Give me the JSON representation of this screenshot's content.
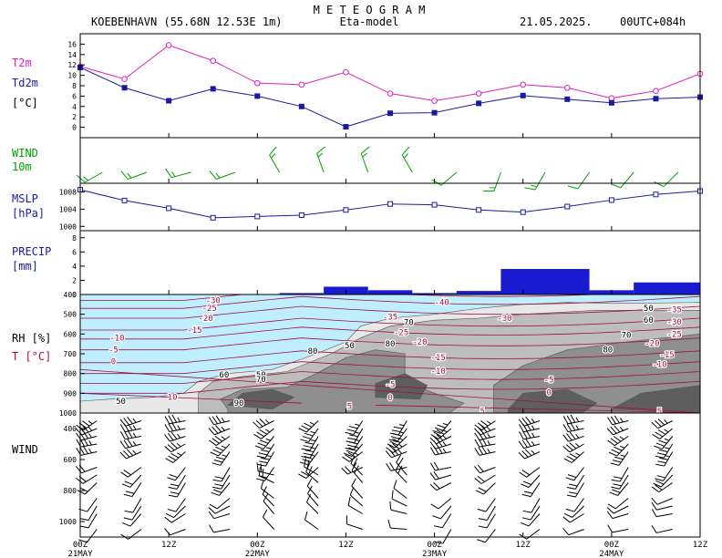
{
  "header": {
    "title": "M E T E O G R A M",
    "station": "KOEBENHAVN (55.68N 12.53E   1m)",
    "model": "Eta-model",
    "date": "21.05.2025.",
    "run": "00UTC+084h"
  },
  "time_axis": {
    "ticks": [
      "00Z",
      "12Z",
      "00Z",
      "12Z",
      "00Z",
      "12Z",
      "00Z",
      "12Z"
    ],
    "days": [
      {
        "label": "21MAY",
        "tick_index": 0
      },
      {
        "label": "22MAY",
        "tick_index": 2
      },
      {
        "label": "23MAY",
        "tick_index": 4
      },
      {
        "label": "24MAY",
        "tick_index": 6
      }
    ]
  },
  "colors": {
    "t2m": "#e020c0",
    "td2m": "#1a1aa0",
    "wind": "#00a000",
    "mslp": "#1a1aa0",
    "precip": "#1a1ad0",
    "sky": "#bfefff",
    "temp_contour": "#a01040",
    "rh_fill": [
      "#e8e8e8",
      "#bdbdbd",
      "#8f8f8f",
      "#5e5e5e"
    ]
  },
  "chart_data": [
    {
      "id": "temperature",
      "type": "line",
      "label_series1": "T2m",
      "label_series2": "Td2m",
      "unit": "[°C]",
      "x_hours": [
        0,
        6,
        12,
        18,
        24,
        30,
        36,
        42,
        48,
        54,
        60,
        66,
        72,
        78,
        84
      ],
      "series": [
        {
          "name": "T2m",
          "values": [
            11.7,
            9.3,
            15.8,
            12.8,
            8.5,
            8.2,
            10.6,
            6.5,
            5.1,
            6.5,
            8.2,
            7.6,
            5.6,
            7.0,
            10.3
          ]
        },
        {
          "name": "Td2m",
          "values": [
            11.5,
            7.6,
            5.1,
            7.4,
            6.0,
            4.0,
            0.1,
            2.7,
            2.8,
            4.6,
            6.1,
            5.4,
            4.7,
            5.5,
            5.8
          ]
        }
      ],
      "ylim": [
        -2,
        18
      ],
      "yticks": [
        0,
        2,
        4,
        6,
        8,
        10,
        12,
        14,
        16
      ]
    },
    {
      "id": "wind10m",
      "type": "barbs",
      "label": "WIND",
      "sublabel": "10m",
      "x_hours": [
        3,
        9,
        15,
        21,
        27,
        33,
        39,
        45,
        51,
        57,
        63,
        69,
        75,
        81
      ],
      "dir_deg": [
        240,
        250,
        255,
        250,
        330,
        340,
        340,
        330,
        230,
        200,
        210,
        215,
        220,
        225
      ],
      "speed_kt": [
        15,
        15,
        15,
        15,
        15,
        15,
        15,
        15,
        10,
        15,
        15,
        10,
        10,
        10
      ]
    },
    {
      "id": "mslp",
      "type": "line",
      "label": "MSLP",
      "unit": "[hPa]",
      "x_hours": [
        0,
        6,
        12,
        18,
        24,
        30,
        36,
        42,
        48,
        54,
        60,
        66,
        72,
        78,
        84
      ],
      "values": [
        1008.5,
        1006.0,
        1004.2,
        1002.0,
        1002.3,
        1002.6,
        1003.8,
        1005.2,
        1005.0,
        1003.8,
        1003.3,
        1004.6,
        1006.1,
        1007.4,
        1008.2
      ],
      "ylim": [
        999,
        1010
      ],
      "yticks": [
        1000,
        1004,
        1008
      ]
    },
    {
      "id": "precip",
      "type": "bar",
      "label": "PRECIP",
      "unit": "[mm]",
      "bars": [
        {
          "start": 27,
          "end": 33,
          "value": 0.2
        },
        {
          "start": 33,
          "end": 39,
          "value": 1.1
        },
        {
          "start": 39,
          "end": 45,
          "value": 0.6
        },
        {
          "start": 45,
          "end": 51,
          "value": 0.2
        },
        {
          "start": 51,
          "end": 57,
          "value": 0.5
        },
        {
          "start": 57,
          "end": 69,
          "value": 3.6
        },
        {
          "start": 69,
          "end": 75,
          "value": 0.6
        },
        {
          "start": 75,
          "end": 84,
          "value": 1.7
        }
      ],
      "ylim": [
        0,
        9
      ],
      "yticks": [
        0,
        2,
        4,
        6,
        8
      ]
    },
    {
      "id": "rh_temp",
      "type": "heatmap",
      "label_rh": "RH [%]",
      "label_t": "T [°C]",
      "yticks": [
        400,
        500,
        600,
        700,
        800,
        900,
        1000
      ],
      "ylim": [
        1000,
        400
      ],
      "rh_labels": [
        {
          "text": "50",
          "h": 5.5,
          "p": 940
        },
        {
          "text": "60",
          "h": 19.5,
          "p": 805
        },
        {
          "text": "50",
          "h": 24.5,
          "p": 806
        },
        {
          "text": "70",
          "h": 24.5,
          "p": 830
        },
        {
          "text": "90",
          "h": 21.5,
          "p": 950
        },
        {
          "text": "80",
          "h": 31.5,
          "p": 686
        },
        {
          "text": "50",
          "h": 36.5,
          "p": 658
        },
        {
          "text": "80",
          "h": 42,
          "p": 650
        },
        {
          "text": "70",
          "h": 44.5,
          "p": 540
        },
        {
          "text": "80",
          "h": 71.5,
          "p": 680
        },
        {
          "text": "70",
          "h": 74,
          "p": 605
        },
        {
          "text": "60",
          "h": 77,
          "p": 530
        },
        {
          "text": "50",
          "h": 77,
          "p": 470
        }
      ],
      "t_labels": [
        {
          "text": "-30",
          "h": 18,
          "p": 430
        },
        {
          "text": "-25",
          "h": 17.5,
          "p": 470
        },
        {
          "text": "-20",
          "h": 17,
          "p": 520
        },
        {
          "text": "-15",
          "h": 15.5,
          "p": 580
        },
        {
          "text": "-10",
          "h": 5,
          "p": 620
        },
        {
          "text": "-5",
          "h": 4.5,
          "p": 680
        },
        {
          "text": "0",
          "h": 4.5,
          "p": 740
        },
        {
          "text": "10",
          "h": 12.5,
          "p": 920
        },
        {
          "text": "5",
          "h": 36.5,
          "p": 965
        },
        {
          "text": "-40",
          "h": 49,
          "p": 440
        },
        {
          "text": "-35",
          "h": 42,
          "p": 512
        },
        {
          "text": "-30",
          "h": 57.5,
          "p": 520
        },
        {
          "text": "-25",
          "h": 43.5,
          "p": 592
        },
        {
          "text": "-20",
          "h": 46,
          "p": 640
        },
        {
          "text": "-15",
          "h": 48.5,
          "p": 718
        },
        {
          "text": "-10",
          "h": 48.5,
          "p": 788
        },
        {
          "text": "-5",
          "h": 42,
          "p": 854
        },
        {
          "text": "0",
          "h": 42,
          "p": 922
        },
        {
          "text": "5",
          "h": 54.5,
          "p": 990
        },
        {
          "text": "-5",
          "h": 63.5,
          "p": 832
        },
        {
          "text": "0",
          "h": 63.5,
          "p": 897
        },
        {
          "text": "5",
          "h": 78.5,
          "p": 990
        },
        {
          "text": "-35",
          "h": 80.5,
          "p": 476
        },
        {
          "text": "-30",
          "h": 80.5,
          "p": 538
        },
        {
          "text": "-25",
          "h": 80.5,
          "p": 600
        },
        {
          "text": "-20",
          "h": 77.5,
          "p": 648
        },
        {
          "text": "-15",
          "h": 79.5,
          "p": 704
        },
        {
          "text": "-10",
          "h": 78.5,
          "p": 752
        }
      ]
    },
    {
      "id": "wind_profile",
      "type": "barbs",
      "label": "WIND",
      "yticks": [
        400,
        600,
        800,
        1000
      ],
      "ylim": [
        1100,
        300
      ],
      "x_hours": [
        3,
        9,
        15,
        21,
        27,
        33,
        39,
        45,
        51,
        57,
        63,
        69,
        75,
        81
      ],
      "levels": [
        350,
        400,
        450,
        500,
        550,
        650,
        700,
        750,
        850,
        900,
        950,
        1050
      ]
    }
  ]
}
